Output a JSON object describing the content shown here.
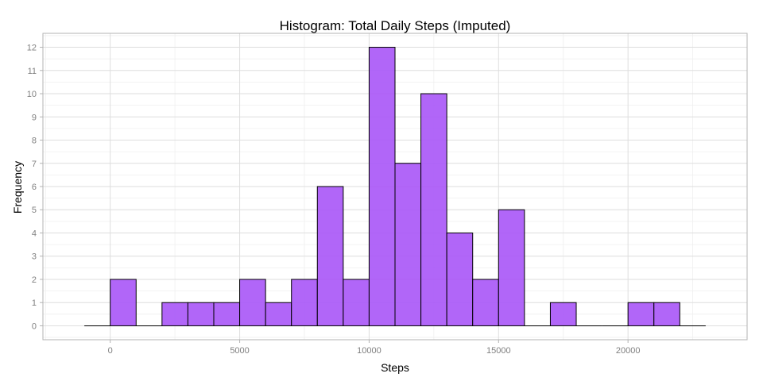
{
  "chart_data": {
    "type": "bar",
    "title": "Histogram: Total Daily Steps (Imputed)",
    "xlabel": "Steps",
    "ylabel": "Frequency",
    "bin_width": 1000,
    "bins": [
      {
        "start": -1000,
        "end": 0,
        "count": 0
      },
      {
        "start": 0,
        "end": 1000,
        "count": 2
      },
      {
        "start": 1000,
        "end": 2000,
        "count": 0
      },
      {
        "start": 2000,
        "end": 3000,
        "count": 1
      },
      {
        "start": 3000,
        "end": 4000,
        "count": 1
      },
      {
        "start": 4000,
        "end": 5000,
        "count": 1
      },
      {
        "start": 5000,
        "end": 6000,
        "count": 2
      },
      {
        "start": 6000,
        "end": 7000,
        "count": 1
      },
      {
        "start": 7000,
        "end": 8000,
        "count": 2
      },
      {
        "start": 8000,
        "end": 9000,
        "count": 6
      },
      {
        "start": 9000,
        "end": 10000,
        "count": 2
      },
      {
        "start": 10000,
        "end": 11000,
        "count": 12
      },
      {
        "start": 11000,
        "end": 12000,
        "count": 7
      },
      {
        "start": 12000,
        "end": 13000,
        "count": 10
      },
      {
        "start": 13000,
        "end": 14000,
        "count": 4
      },
      {
        "start": 14000,
        "end": 15000,
        "count": 2
      },
      {
        "start": 15000,
        "end": 16000,
        "count": 5
      },
      {
        "start": 16000,
        "end": 17000,
        "count": 0
      },
      {
        "start": 17000,
        "end": 18000,
        "count": 1
      },
      {
        "start": 18000,
        "end": 19000,
        "count": 0
      },
      {
        "start": 19000,
        "end": 20000,
        "count": 0
      },
      {
        "start": 20000,
        "end": 21000,
        "count": 1
      },
      {
        "start": 21000,
        "end": 22000,
        "count": 1
      },
      {
        "start": 22000,
        "end": 23000,
        "count": 0
      }
    ],
    "xlim": [
      -2600,
      24600
    ],
    "ylim": [
      -0.6,
      12.6
    ],
    "x_ticks": [
      {
        "value": 0,
        "label": "0"
      },
      {
        "value": 5000,
        "label": "5000"
      },
      {
        "value": 10000,
        "label": "10000"
      },
      {
        "value": 15000,
        "label": "15000"
      },
      {
        "value": 20000,
        "label": "20000"
      }
    ],
    "y_ticks": [
      {
        "value": 0,
        "label": "0"
      },
      {
        "value": 1,
        "label": "1"
      },
      {
        "value": 2,
        "label": "2"
      },
      {
        "value": 3,
        "label": "3"
      },
      {
        "value": 4,
        "label": "4"
      },
      {
        "value": 5,
        "label": "5"
      },
      {
        "value": 6,
        "label": "6"
      },
      {
        "value": 7,
        "label": "7"
      },
      {
        "value": 8,
        "label": "8"
      },
      {
        "value": 9,
        "label": "9"
      },
      {
        "value": 10,
        "label": "10"
      },
      {
        "value": 11,
        "label": "11"
      },
      {
        "value": 12,
        "label": "12"
      }
    ],
    "grid": true,
    "legend": "none",
    "colors": {
      "bar_fill": "#a855f7",
      "bar_stroke": "#000000",
      "grid_major": "#dedede",
      "grid_minor": "#efefef",
      "panel_border": "#b3b3b3",
      "tick_text": "#7f7f7f"
    }
  }
}
